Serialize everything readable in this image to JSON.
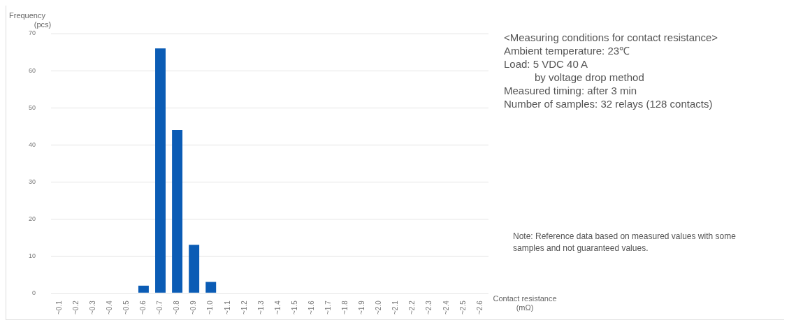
{
  "chart_data": {
    "type": "bar",
    "categories": [
      "~0.1",
      "~0.2",
      "~0.3",
      "~0.4",
      "~0.5",
      "~0.6",
      "~0.7",
      "~0.8",
      "~0.9",
      "~1.0",
      "~1.1",
      "~1.2",
      "~1.3",
      "~1.4",
      "~1.5",
      "~1.6",
      "~1.7",
      "~1.8",
      "~1.9",
      "~2.0",
      "~2.1",
      "~2.2",
      "~2.3",
      "~2.4",
      "~2.5",
      "~2.6"
    ],
    "values": [
      0,
      0,
      0,
      0,
      0,
      2,
      66,
      44,
      13,
      3,
      0,
      0,
      0,
      0,
      0,
      0,
      0,
      0,
      0,
      0,
      0,
      0,
      0,
      0,
      0,
      0
    ],
    "color": "#0b5cb5",
    "xlabel": "Contact resistance\n(mΩ)",
    "ylabel": "Frequency\n(pcs)",
    "ylim": [
      0,
      70
    ],
    "yticks": [
      0,
      10,
      20,
      30,
      40,
      50,
      60,
      70
    ],
    "grid": "y",
    "legend": false,
    "annotations": [
      "<Measuring conditions for contact resistance>",
      "Ambient temperature: 23℃",
      "Load: 5 VDC 40 A",
      "by voltage drop method",
      "Measured timing: after 3 min",
      "Number of samples: 32 relays (128 contacts)",
      "Note: Reference data based on measured values with some samples and not guaranteed values."
    ]
  }
}
